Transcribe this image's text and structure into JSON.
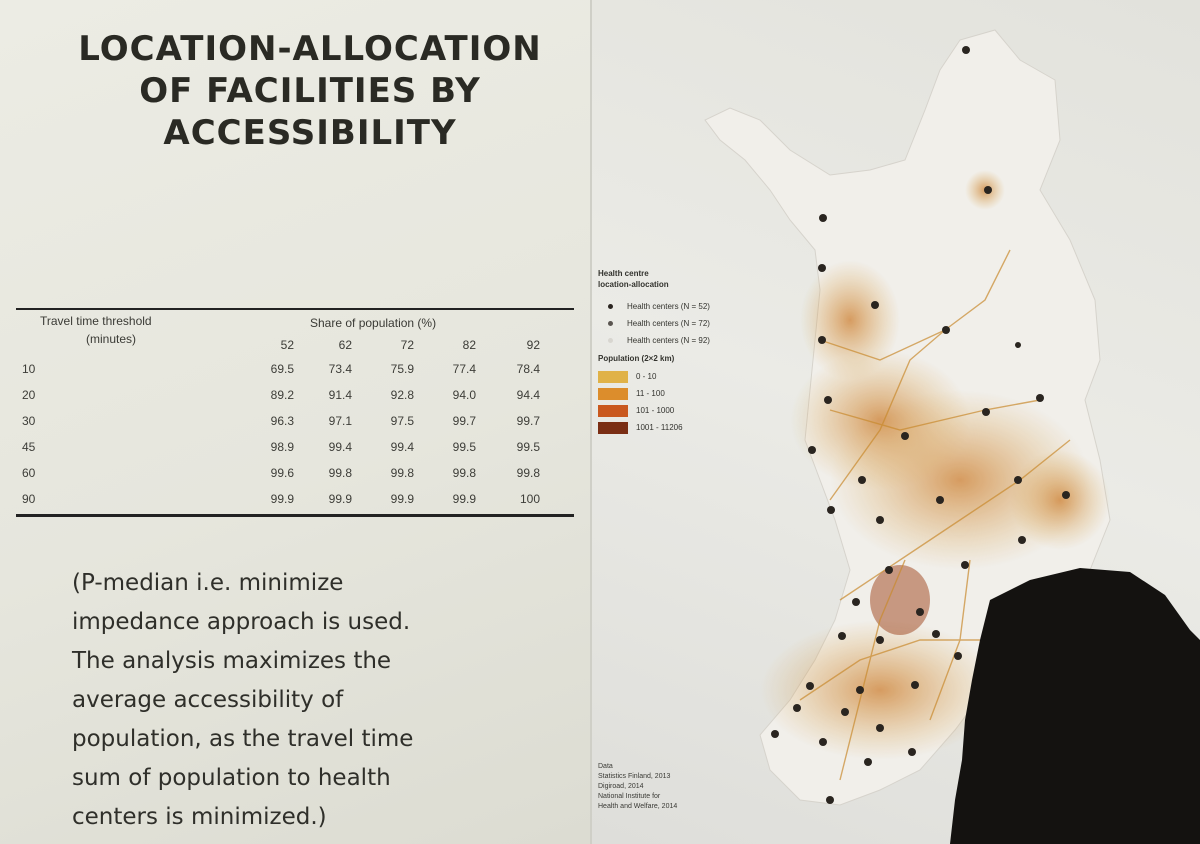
{
  "title_lines": [
    "LOCATION-ALLOCATION",
    "OF FACILITIES BY",
    "ACCESSIBILITY"
  ],
  "table": {
    "row_header_line1": "Travel time threshold",
    "row_header_line2": "(minutes)",
    "col_header": "Share of population (%)",
    "columns": [
      "52",
      "62",
      "72",
      "82",
      "92"
    ],
    "rows": [
      {
        "threshold": "10",
        "values": [
          "69.5",
          "73.4",
          "75.9",
          "77.4",
          "78.4"
        ]
      },
      {
        "threshold": "20",
        "values": [
          "89.2",
          "91.4",
          "92.8",
          "94.0",
          "94.4"
        ]
      },
      {
        "threshold": "30",
        "values": [
          "96.3",
          "97.1",
          "97.5",
          "99.7",
          "99.7"
        ]
      },
      {
        "threshold": "45",
        "values": [
          "98.9",
          "99.4",
          "99.4",
          "99.5",
          "99.5"
        ]
      },
      {
        "threshold": "60",
        "values": [
          "99.6",
          "99.8",
          "99.8",
          "99.8",
          "99.8"
        ]
      },
      {
        "threshold": "90",
        "values": [
          "99.9",
          "99.9",
          "99.9",
          "99.9",
          "100"
        ]
      }
    ]
  },
  "note_lines": [
    "(P-median i.e. minimize",
    "impedance approach is used.",
    "The analysis maximizes the",
    "average accessibility of",
    "population, as the travel time",
    "sum of population to health",
    "centers is minimized.)"
  ],
  "legend": {
    "title_line1": "Health centre",
    "title_line2": "location-allocation",
    "markers": [
      {
        "label": "Health centers (N = 52)",
        "color": "#2a2520"
      },
      {
        "label": "Health centers (N = 72)",
        "color": "#5a5550"
      },
      {
        "label": "Health centers (N = 92)",
        "color": "#d8d6d0"
      }
    ],
    "pop_title": "Population (2×2 km)",
    "classes": [
      {
        "label": "0 - 10",
        "color": "#e0b248"
      },
      {
        "label": "11 - 100",
        "color": "#dc8d2c"
      },
      {
        "label": "101 - 1000",
        "color": "#c9581e"
      },
      {
        "label": "1001 - 11206",
        "color": "#7a2e14"
      }
    ]
  },
  "source_lines": [
    "Data",
    "Statistics Finland, 2013",
    "Digiroad, 2014",
    "National Institute for",
    "Health and Welfare, 2014"
  ]
}
